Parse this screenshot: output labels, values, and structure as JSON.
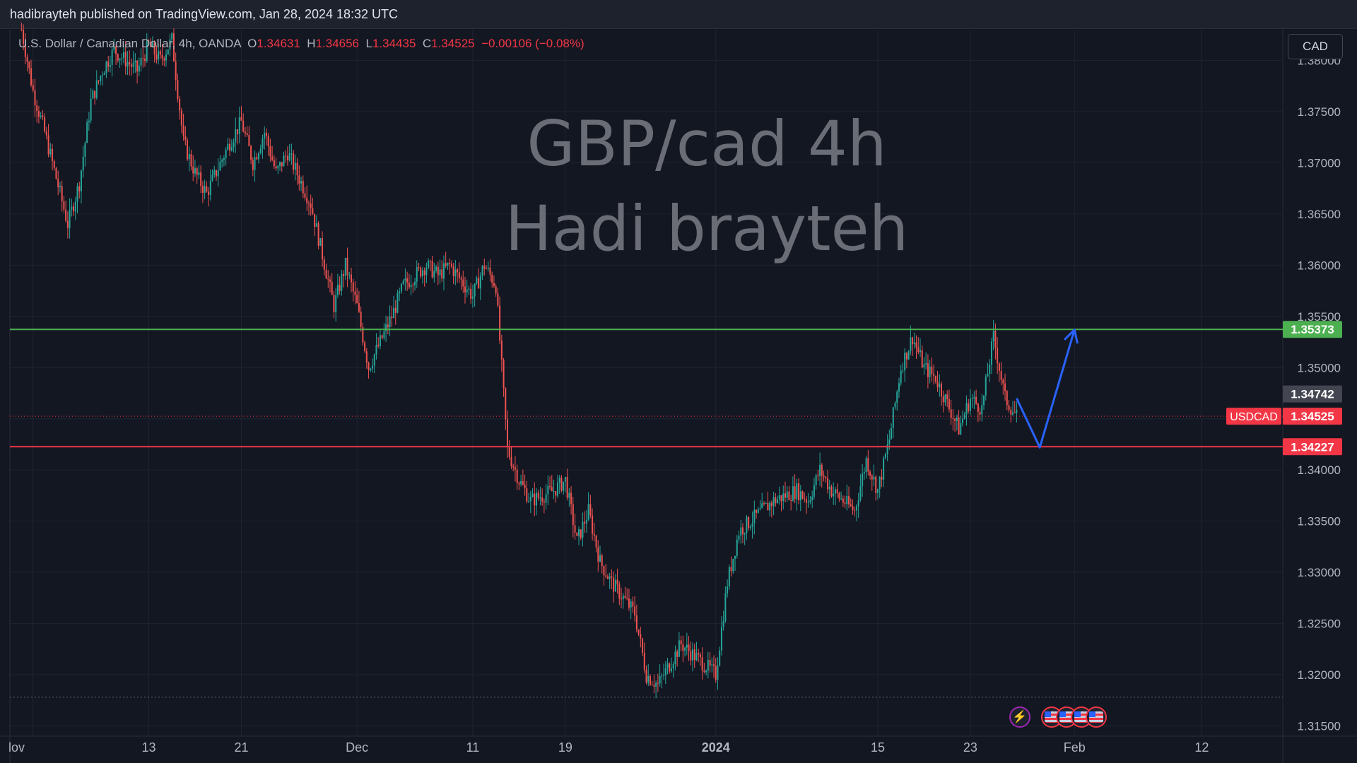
{
  "header": {
    "publish_text": "hadibrayteh published on TradingView.com, Jan 28, 2024 18:32 UTC"
  },
  "legend": {
    "symbol": "U.S. Dollar / Canadian Dollar, 4h, OANDA",
    "o_label": "O",
    "o": "1.34631",
    "h_label": "H",
    "h": "1.34656",
    "l_label": "L",
    "l": "1.34435",
    "c_label": "C",
    "c": "1.34525",
    "change": "−0.00106 (−0.08%)"
  },
  "currency_button": "CAD",
  "watermark": {
    "line1": "GBP/cad 4h",
    "line2": "Hadi brayteh"
  },
  "events": {
    "icons": [
      "lightning-icon",
      "us-flag-icon",
      "us-flag-icon",
      "us-flag-icon",
      "us-flag-icon"
    ]
  },
  "colors": {
    "background": "#131722",
    "up": "#26a69a",
    "down": "#ef5350",
    "resistance": "#4caf50",
    "support": "#f23645",
    "arrow": "#2962ff",
    "grid": "#1f2330"
  },
  "chart_data": {
    "type": "candlestick",
    "symbol": "USDCAD",
    "timeframe": "4h",
    "ylim": [
      1.314,
      1.383
    ],
    "y_ticks": [
      "1.31500",
      "1.32000",
      "1.32500",
      "1.33000",
      "1.33500",
      "1.34000",
      "1.34500",
      "1.35000",
      "1.35500",
      "1.36000",
      "1.36500",
      "1.37000",
      "1.37500",
      "1.38000"
    ],
    "x_ticks": [
      "lov",
      "13",
      "21",
      "Dec",
      "11",
      "19",
      "2024",
      "15",
      "23",
      "Feb",
      "12"
    ],
    "x_tick_dates": [
      "2023-11-03",
      "2023-11-13",
      "2023-11-21",
      "2023-12-01",
      "2023-12-11",
      "2023-12-19",
      "2024-01-01",
      "2024-01-15",
      "2024-01-23",
      "2024-02-01",
      "2024-02-12"
    ],
    "price_path": [
      [
        "2023-11-02",
        1.383
      ],
      [
        "2023-11-03",
        1.377
      ],
      [
        "2023-11-04",
        1.373
      ],
      [
        "2023-11-06",
        1.364
      ],
      [
        "2023-11-07",
        1.368
      ],
      [
        "2023-11-08",
        1.376
      ],
      [
        "2023-11-09",
        1.379
      ],
      [
        "2023-11-10",
        1.381
      ],
      [
        "2023-11-12",
        1.379
      ],
      [
        "2023-11-13",
        1.3815
      ],
      [
        "2023-11-14",
        1.38
      ],
      [
        "2023-11-15",
        1.382
      ],
      [
        "2023-11-16",
        1.372
      ],
      [
        "2023-11-17",
        1.369
      ],
      [
        "2023-11-18",
        1.367
      ],
      [
        "2023-11-20",
        1.372
      ],
      [
        "2023-11-21",
        1.374
      ],
      [
        "2023-11-22",
        1.37
      ],
      [
        "2023-11-23",
        1.373
      ],
      [
        "2023-11-24",
        1.369
      ],
      [
        "2023-11-25",
        1.371
      ],
      [
        "2023-11-27",
        1.366
      ],
      [
        "2023-11-28",
        1.361
      ],
      [
        "2023-11-29",
        1.356
      ],
      [
        "2023-11-30",
        1.36
      ],
      [
        "2023-12-01",
        1.356
      ],
      [
        "2023-12-02",
        1.35
      ],
      [
        "2023-12-04",
        1.355
      ],
      [
        "2023-12-05",
        1.358
      ],
      [
        "2023-12-06",
        1.359
      ],
      [
        "2023-12-07",
        1.36
      ],
      [
        "2023-12-08",
        1.359
      ],
      [
        "2023-12-09",
        1.36
      ],
      [
        "2023-12-11",
        1.357
      ],
      [
        "2023-12-12",
        1.36
      ],
      [
        "2023-12-13",
        1.358
      ],
      [
        "2023-12-14",
        1.342
      ],
      [
        "2023-12-15",
        1.339
      ],
      [
        "2023-12-16",
        1.337
      ],
      [
        "2023-12-18",
        1.338
      ],
      [
        "2023-12-19",
        1.339
      ],
      [
        "2023-12-20",
        1.333
      ],
      [
        "2023-12-21",
        1.336
      ],
      [
        "2023-12-22",
        1.331
      ],
      [
        "2023-12-23",
        1.329
      ],
      [
        "2023-12-25",
        1.326
      ],
      [
        "2023-12-26",
        1.32
      ],
      [
        "2023-12-27",
        1.319
      ],
      [
        "2023-12-28",
        1.321
      ],
      [
        "2023-12-29",
        1.323
      ],
      [
        "2024-01-01",
        1.32
      ],
      [
        "2024-01-02",
        1.329
      ],
      [
        "2024-01-03",
        1.334
      ],
      [
        "2024-01-04",
        1.335
      ],
      [
        "2024-01-05",
        1.336
      ],
      [
        "2024-01-06",
        1.337
      ],
      [
        "2024-01-08",
        1.338
      ],
      [
        "2024-01-09",
        1.337
      ],
      [
        "2024-01-10",
        1.34
      ],
      [
        "2024-01-11",
        1.338
      ],
      [
        "2024-01-12",
        1.337
      ],
      [
        "2024-01-13",
        1.336
      ],
      [
        "2024-01-14",
        1.341
      ],
      [
        "2024-01-15",
        1.338
      ],
      [
        "2024-01-16",
        1.343
      ],
      [
        "2024-01-17",
        1.35
      ],
      [
        "2024-01-18",
        1.353
      ],
      [
        "2024-01-19",
        1.35
      ],
      [
        "2024-01-20",
        1.349
      ],
      [
        "2024-01-22",
        1.344
      ],
      [
        "2024-01-23",
        1.347
      ],
      [
        "2024-01-24",
        1.346
      ],
      [
        "2024-01-25",
        1.353
      ],
      [
        "2024-01-26",
        1.347
      ],
      [
        "2024-01-27",
        1.3452
      ]
    ],
    "horizontal_lines": [
      {
        "name": "resistance",
        "price": 1.35373,
        "label": "1.35373",
        "color": "#4caf50"
      },
      {
        "name": "support",
        "price": 1.34227,
        "label": "1.34227",
        "color": "#f23645"
      }
    ],
    "bottom_dotted_price": 1.3178,
    "price_labels": [
      {
        "name": "prev-close",
        "price": 1.34742,
        "label": "1.34742",
        "color": "#434651"
      },
      {
        "name": "last-price",
        "price": 1.34525,
        "label": "1.34525",
        "color": "#f23645",
        "tag": "USDCAD"
      }
    ],
    "projection": [
      [
        "2024-01-27",
        1.347
      ],
      [
        "2024-01-29",
        1.3422
      ],
      [
        "2024-02-01",
        1.3537
      ]
    ]
  }
}
